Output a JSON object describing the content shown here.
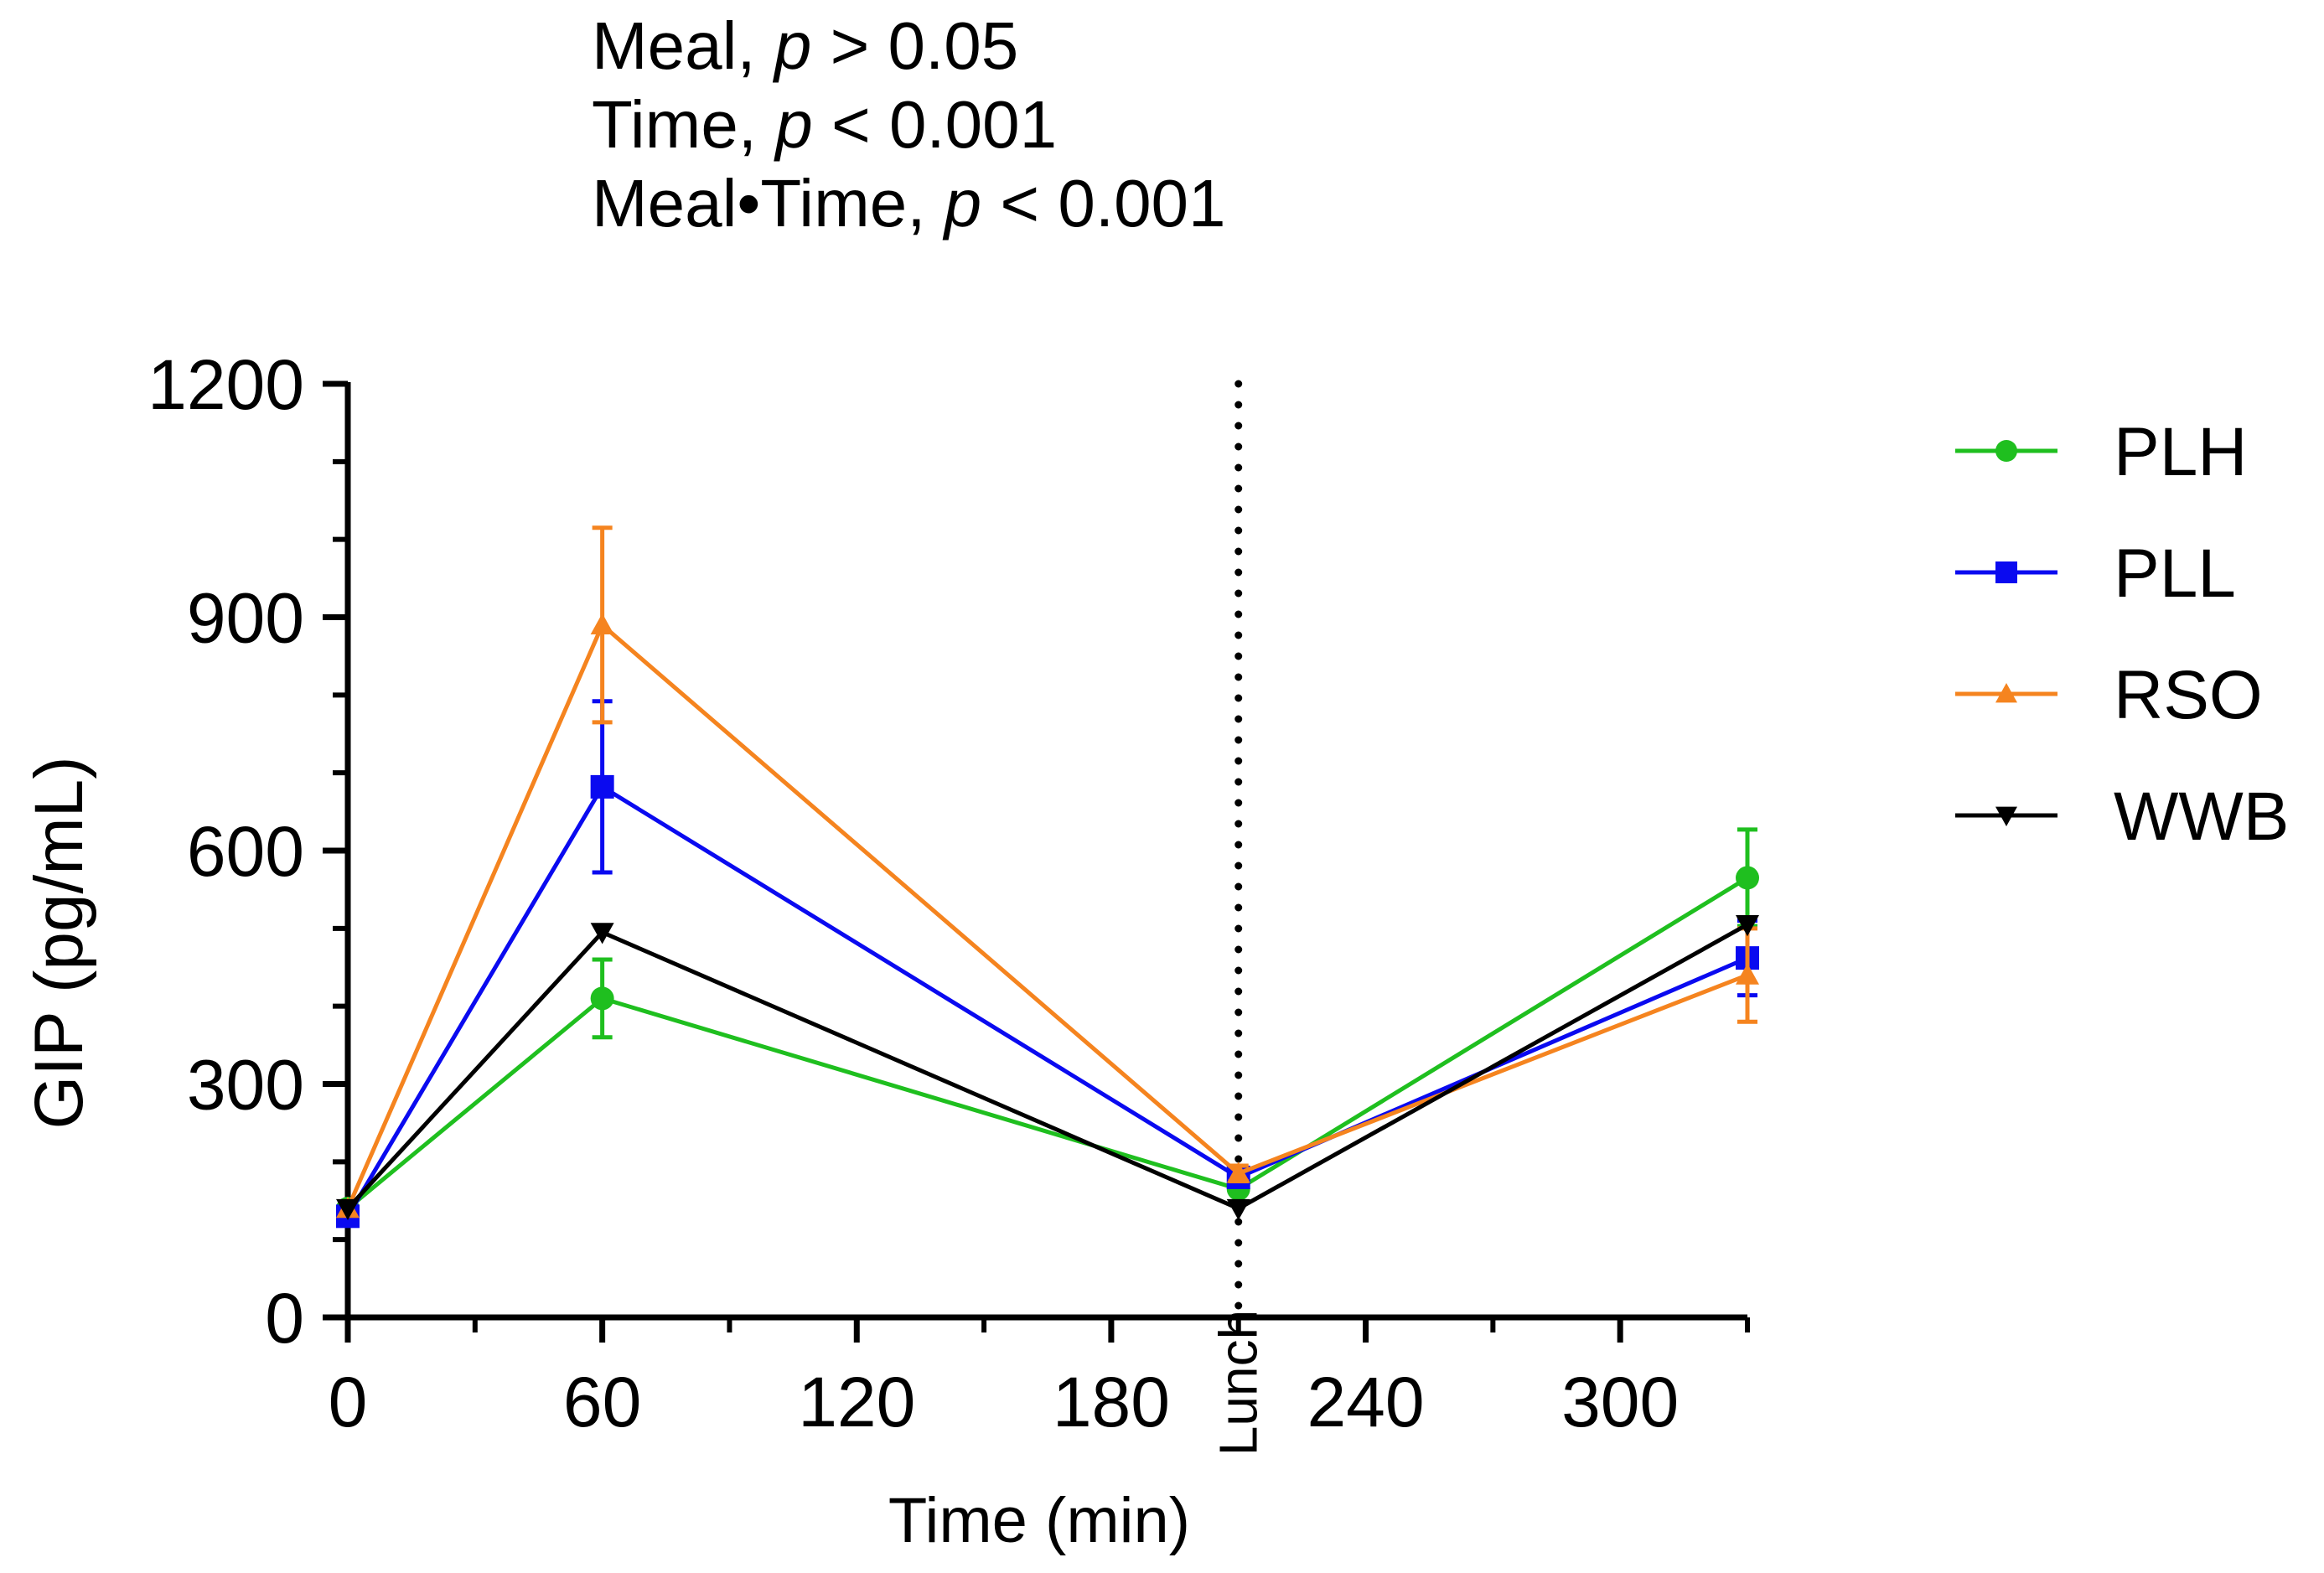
{
  "stats": [
    {
      "label": "Meal, ",
      "p": "p",
      "rest": " > 0.05"
    },
    {
      "label": "Time, ",
      "p": "p",
      "rest": " < 0.001"
    },
    {
      "label": "Meal•Time, ",
      "p": "p",
      "rest": " < 0.001"
    }
  ],
  "chart_data": {
    "type": "line",
    "title": "",
    "xlabel": "Time (min)",
    "ylabel": "GIP (pg/mL)",
    "xlim": [
      0,
      330
    ],
    "ylim": [
      0,
      1200
    ],
    "x_ticks": [
      0,
      60,
      120,
      180,
      240,
      300
    ],
    "x_tick_labels": [
      "0",
      "60",
      "120",
      "180",
      "240",
      "300"
    ],
    "y_ticks": [
      0,
      300,
      600,
      900,
      1200
    ],
    "y_tick_labels": [
      "0",
      "300",
      "600",
      "900",
      "1200"
    ],
    "marker_line": {
      "x": 210,
      "label": "Lunch",
      "style": "dotted"
    },
    "x": [
      0,
      60,
      210,
      330
    ],
    "series": [
      {
        "name": "PLH",
        "color": "#1fbf1f",
        "marker": "circle",
        "values": [
          140,
          410,
          165,
          565
        ],
        "errors": [
          0,
          50,
          0,
          62
        ]
      },
      {
        "name": "PLL",
        "color": "#0a0af0",
        "marker": "square",
        "values": [
          130,
          682,
          180,
          462
        ],
        "errors": [
          0,
          110,
          0,
          48
        ]
      },
      {
        "name": "RSO",
        "color": "#f5841f",
        "marker": "triangle-up",
        "values": [
          140,
          890,
          185,
          440
        ],
        "errors": [
          0,
          125,
          10,
          60
        ]
      },
      {
        "name": "WWB",
        "color": "#000000",
        "marker": "triangle-down",
        "values": [
          140,
          495,
          140,
          505
        ],
        "errors": [
          0,
          0,
          0,
          0
        ]
      }
    ],
    "legend_position": "right"
  }
}
